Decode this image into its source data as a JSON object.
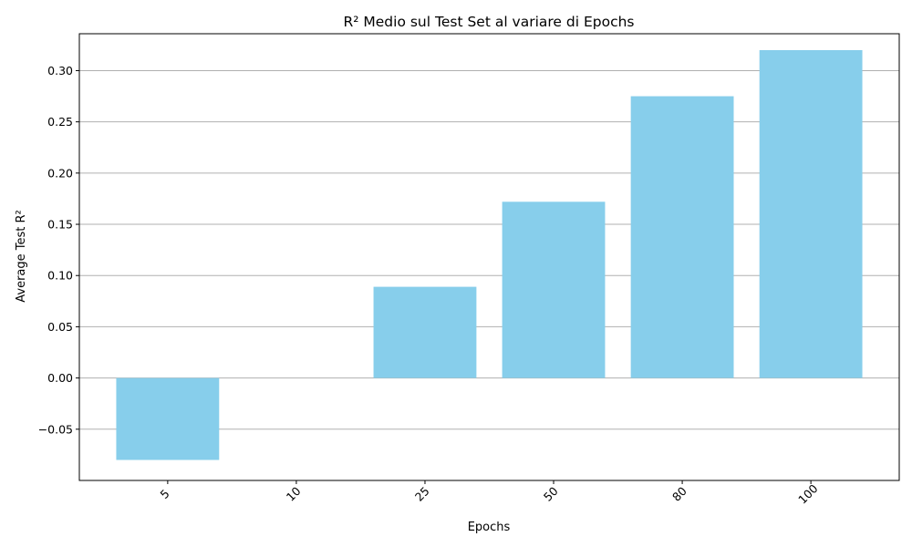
{
  "chart_data": {
    "type": "bar",
    "title": "R² Medio sul Test Set al variare di Epochs",
    "xlabel": "Epochs",
    "ylabel": "Average Test R²",
    "categories": [
      "5",
      "10",
      "25",
      "50",
      "80",
      "100"
    ],
    "values": [
      -0.08,
      0.0,
      0.089,
      0.172,
      0.275,
      0.32
    ],
    "ylim": [
      -0.1,
      0.336
    ],
    "yticks": [
      -0.05,
      0.0,
      0.05,
      0.1,
      0.15,
      0.2,
      0.25,
      0.3
    ],
    "ytick_labels": [
      "−0.05",
      "0.00",
      "0.05",
      "0.10",
      "0.15",
      "0.20",
      "0.25",
      "0.30"
    ],
    "grid": "y",
    "bar_color": "#87CEEB",
    "grid_color": "#b0b0b0",
    "x_tick_rotation": 45
  }
}
